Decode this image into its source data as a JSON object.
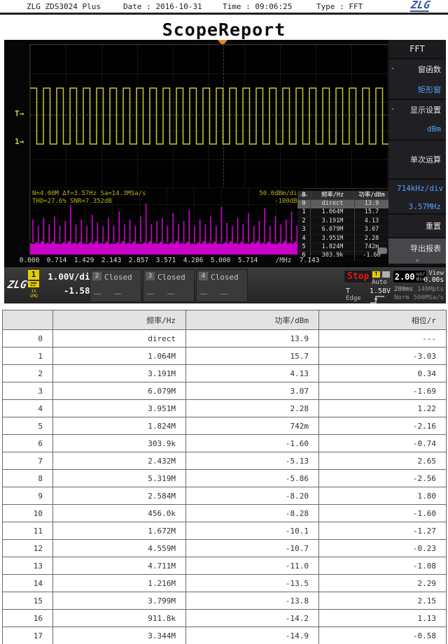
{
  "header": {
    "device": "ZLG ZDS3024 Plus",
    "date": "Date : 2016-10-31",
    "time": "Time : 09:06:25",
    "type": "Type : FFT",
    "logo": "ZLG"
  },
  "title": "ScopeReport",
  "scope": {
    "markers": {
      "trigger": "T→",
      "channel": "1→"
    },
    "fft": {
      "line1": "N=4.00M  Δf=3.57Hz  Sa=14.3MSa/s",
      "line2": "THD=27.6%  SNR=7.352dB",
      "scale_label": "50.0dBm/div",
      "ref_label": "-100dBm",
      "ticks": [
        "0.000",
        "0.714",
        "1.429",
        "2.143",
        "2.857",
        "3.571",
        "4.286",
        "5.000",
        "5.714"
      ],
      "unit": "/MHz",
      "end": "7.143"
    },
    "screen_table": {
      "nav": "B",
      "col_freq": "频率/Hz",
      "col_power": "功率/dBm"
    },
    "menu": {
      "title": "FFT",
      "items": [
        {
          "name": "menu-item-window-function",
          "label": "窗函数",
          "value": "矩形窗",
          "arrow": true
        },
        {
          "name": "menu-item-display-settings",
          "label": "显示设置",
          "value": "dBm",
          "arrow": true
        },
        {
          "name": "menu-item-single-run",
          "label": "单次运算"
        },
        {
          "name": "menu-item-scale",
          "label": "714kHz/div",
          "value": "3.57MHz",
          "blue": true
        },
        {
          "name": "menu-item-reset",
          "label": "重置"
        },
        {
          "name": "menu-item-export-report",
          "label": "导出报表",
          "selected": true,
          "chevron": "⌄"
        }
      ]
    },
    "channels": [
      {
        "num": "1",
        "vdiv": "1.00V/div",
        "offset": "-1.58V",
        "probe": "1X",
        "impedance": "1MΩ"
      },
      {
        "num": "2",
        "state": "Closed"
      },
      {
        "num": "3",
        "state": "Closed"
      },
      {
        "num": "4",
        "state": "Closed"
      }
    ],
    "trigger": {
      "state": "Stop",
      "mode": "Auto",
      "source": "T",
      "level": "1.58V",
      "type": "Edge"
    },
    "timebase": {
      "scale": "2.00",
      "unit": "us/",
      "unit2": "div",
      "view_label": "View",
      "view_value": "0.00s",
      "mem_time": "280ms",
      "mem_depth": "140Mpts",
      "acq_mode": "Norm",
      "sample_rate": "500MSa/s"
    },
    "waveform": {
      "periods": 27,
      "high": 62,
      "low": 142,
      "color": "#c9c937"
    },
    "spectrum": {
      "color": "#d400d4",
      "spikes": [
        0.5,
        0.3,
        0.55,
        0.35,
        0.6,
        0.3,
        0.45,
        0.95,
        0.35,
        0.5,
        0.3,
        0.65,
        0.4,
        0.3,
        0.55,
        0.3,
        0.75,
        0.35,
        0.5,
        0.3,
        0.6,
        1.0,
        0.35,
        0.45,
        0.55,
        0.3,
        0.7,
        0.35,
        0.45,
        0.8,
        0.3,
        0.5,
        0.35,
        0.6,
        0.3,
        0.9,
        0.4,
        0.3,
        0.55,
        0.35,
        0.7,
        0.3,
        0.45,
        0.85,
        0.3,
        0.6,
        0.35,
        0.5,
        0.75,
        0.3
      ]
    }
  },
  "table": {
    "headers": [
      "",
      "频率/Hz",
      "功率/dBm",
      "相位/r"
    ],
    "rows": [
      [
        "0",
        "direct",
        "13.9",
        "---"
      ],
      [
        "1",
        "1.064M",
        "15.7",
        "-3.03"
      ],
      [
        "2",
        "3.191M",
        "4.13",
        "0.34"
      ],
      [
        "3",
        "6.079M",
        "3.07",
        "-1.69"
      ],
      [
        "4",
        "3.951M",
        "2.28",
        "1.22"
      ],
      [
        "5",
        "1.824M",
        "742m",
        "-2.16"
      ],
      [
        "6",
        "303.9k",
        "-1.60",
        "-0.74"
      ],
      [
        "7",
        "2.432M",
        "-5.13",
        "2.65"
      ],
      [
        "8",
        "5.319M",
        "-5.86",
        "-2.56"
      ],
      [
        "9",
        "2.584M",
        "-8.20",
        "1.80"
      ],
      [
        "10",
        "456.0k",
        "-8.28",
        "-1.60"
      ],
      [
        "11",
        "1.672M",
        "-10.1",
        "-1.27"
      ],
      [
        "12",
        "4.559M",
        "-10.7",
        "-0.23"
      ],
      [
        "13",
        "4.711M",
        "-11.0",
        "-1.08"
      ],
      [
        "14",
        "1.216M",
        "-13.5",
        "2.29"
      ],
      [
        "15",
        "3.799M",
        "-13.8",
        "2.15"
      ],
      [
        "16",
        "911.8k",
        "-14.2",
        "1.13"
      ],
      [
        "17",
        "3.344M",
        "-14.9",
        "-0.58"
      ]
    ]
  }
}
